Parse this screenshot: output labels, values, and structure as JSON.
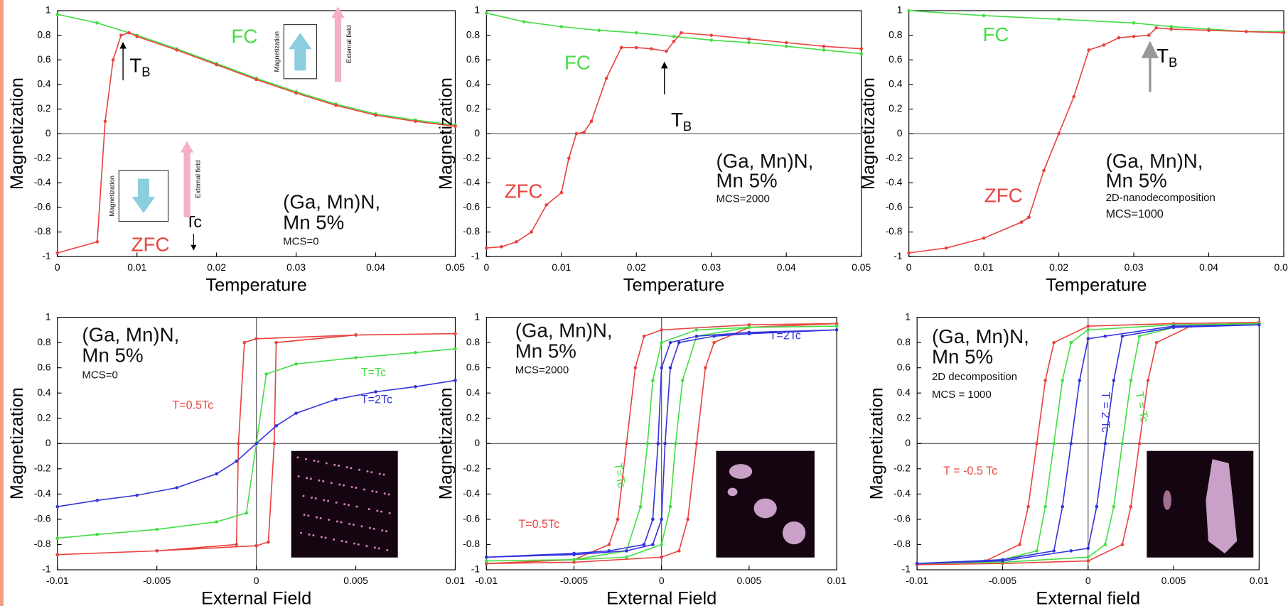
{
  "chart_data": [
    {
      "type": "line",
      "xlabel": "Temperature",
      "ylabel": "Magnetization",
      "xlim": [
        0,
        0.05
      ],
      "ylim": [
        -1,
        1
      ],
      "xticks": [
        0,
        0.01,
        0.02,
        0.03,
        0.04,
        0.05
      ],
      "yticks": [
        1,
        0.8,
        0.6,
        0.4,
        0.2,
        0,
        -0.2,
        -0.4,
        -0.6,
        -0.8,
        -1
      ],
      "series": [
        {
          "name": "FC",
          "color": "#44dd44",
          "x": [
            0,
            0.005,
            0.01,
            0.015,
            0.02,
            0.025,
            0.03,
            0.035,
            0.04,
            0.045,
            0.05
          ],
          "values": [
            0.97,
            0.9,
            0.8,
            0.69,
            0.57,
            0.45,
            0.34,
            0.24,
            0.16,
            0.11,
            0.07
          ]
        },
        {
          "name": "ZFC",
          "color": "#e8433f",
          "x": [
            0,
            0.005,
            0.006,
            0.007,
            0.008,
            0.009,
            0.01,
            0.015,
            0.02,
            0.025,
            0.03,
            0.035,
            0.04,
            0.045,
            0.05
          ],
          "values": [
            -0.97,
            -0.88,
            0.1,
            0.6,
            0.8,
            0.82,
            0.79,
            0.68,
            0.56,
            0.44,
            0.33,
            0.23,
            0.15,
            0.1,
            0.06
          ]
        }
      ],
      "notes": [
        "(Ga, Mn)N,",
        "Mn 5%",
        "MCS=0"
      ],
      "tb": {
        "main": "T",
        "sub": "B"
      },
      "tc": "Tc",
      "inset_labels": [
        "Magnetization",
        "External field",
        "Magnetization",
        "External field"
      ]
    },
    {
      "type": "line",
      "xlabel": "Temperature",
      "ylabel": "Magnetization",
      "xlim": [
        0,
        0.05
      ],
      "ylim": [
        -1,
        1
      ],
      "xticks": [
        0,
        0.01,
        0.02,
        0.03,
        0.04,
        0.05
      ],
      "yticks": [
        1,
        0.8,
        0.6,
        0.4,
        0.2,
        0,
        -0.2,
        -0.4,
        -0.6,
        -0.8,
        -1
      ],
      "series": [
        {
          "name": "FC",
          "color": "#44dd44",
          "x": [
            0,
            0.005,
            0.01,
            0.015,
            0.02,
            0.025,
            0.03,
            0.035,
            0.04,
            0.045,
            0.05
          ],
          "values": [
            0.98,
            0.91,
            0.87,
            0.84,
            0.82,
            0.79,
            0.76,
            0.74,
            0.71,
            0.68,
            0.65
          ]
        },
        {
          "name": "ZFC",
          "color": "#e8433f",
          "x": [
            0,
            0.002,
            0.004,
            0.006,
            0.008,
            0.01,
            0.011,
            0.012,
            0.013,
            0.014,
            0.016,
            0.018,
            0.02,
            0.022,
            0.024,
            0.025,
            0.026,
            0.03,
            0.035,
            0.04,
            0.045,
            0.05
          ],
          "values": [
            -0.93,
            -0.92,
            -0.88,
            -0.8,
            -0.58,
            -0.48,
            -0.2,
            0,
            0.01,
            0.1,
            0.45,
            0.7,
            0.7,
            0.69,
            0.67,
            0.75,
            0.82,
            0.8,
            0.77,
            0.74,
            0.71,
            0.69
          ]
        }
      ],
      "notes": [
        "(Ga, Mn)N,",
        "Mn 5%",
        "MCS=2000"
      ],
      "tb": {
        "main": "T",
        "sub": "B"
      }
    },
    {
      "type": "line",
      "xlabel": "Temperature",
      "ylabel": "Magnetization",
      "xlim": [
        0,
        0.05
      ],
      "ylim": [
        -1,
        1
      ],
      "xticks": [
        0,
        0.01,
        0.02,
        0.03,
        0.04,
        0.05
      ],
      "yticks": [
        1,
        0.8,
        0.6,
        0.4,
        0.2,
        0,
        -0.2,
        -0.4,
        -0.6,
        -0.8,
        -1
      ],
      "series": [
        {
          "name": "FC",
          "color": "#44dd44",
          "x": [
            0,
            0.01,
            0.02,
            0.03,
            0.035,
            0.04,
            0.045,
            0.05
          ],
          "values": [
            1,
            0.96,
            0.93,
            0.9,
            0.87,
            0.85,
            0.83,
            0.83
          ]
        },
        {
          "name": "ZFC",
          "color": "#e8433f",
          "x": [
            0,
            0.005,
            0.01,
            0.015,
            0.016,
            0.018,
            0.02,
            0.022,
            0.024,
            0.026,
            0.028,
            0.03,
            0.032,
            0.033,
            0.035,
            0.04,
            0.045,
            0.05
          ],
          "values": [
            -0.97,
            -0.93,
            -0.85,
            -0.72,
            -0.68,
            -0.3,
            0,
            0.3,
            0.68,
            0.72,
            0.78,
            0.79,
            0.8,
            0.86,
            0.85,
            0.84,
            0.83,
            0.82
          ]
        }
      ],
      "notes": [
        "(Ga, Mn)N,",
        "Mn 5%",
        "2D-nanodecomposition",
        "MCS=1000"
      ],
      "tb": {
        "main": "T",
        "sub": "B"
      }
    },
    {
      "type": "line",
      "xlabel": "External Field",
      "ylabel": "Magnetization",
      "xlim": [
        -0.01,
        0.01
      ],
      "ylim": [
        -1,
        1
      ],
      "xticks": [
        -0.01,
        -0.005,
        0,
        0.005,
        0.01
      ],
      "yticks": [
        1,
        0.8,
        0.6,
        0.4,
        0.2,
        0,
        -0.2,
        -0.4,
        -0.6,
        -0.8,
        -1
      ],
      "series": [
        {
          "name": "T=0.5Tc",
          "color": "#e8433f",
          "x": [
            -0.01,
            -0.005,
            0,
            0.0006,
            0.0009,
            0.001,
            0.005,
            0.01,
            0.005,
            0,
            -0.0006,
            -0.0009,
            -0.001,
            -0.005,
            -0.01
          ],
          "values": [
            -0.88,
            -0.85,
            -0.81,
            -0.78,
            0,
            0.8,
            0.86,
            0.87,
            0.86,
            0.83,
            0.8,
            0,
            -0.8,
            -0.85,
            -0.88
          ]
        },
        {
          "name": "T=Tc",
          "color": "#44dd44",
          "x": [
            -0.01,
            -0.008,
            -0.005,
            -0.002,
            -0.0005,
            0,
            0.0005,
            0.002,
            0.005,
            0.008,
            0.01
          ],
          "values": [
            -0.75,
            -0.72,
            -0.68,
            -0.62,
            -0.55,
            0,
            0.55,
            0.63,
            0.68,
            0.72,
            0.75
          ]
        },
        {
          "name": "T=2Tc",
          "color": "#3333dd",
          "x": [
            -0.01,
            -0.008,
            -0.006,
            -0.004,
            -0.002,
            -0.001,
            0,
            0.001,
            0.002,
            0.004,
            0.006,
            0.008,
            0.01
          ],
          "values": [
            -0.5,
            -0.45,
            -0.41,
            -0.35,
            -0.24,
            -0.14,
            0,
            0.14,
            0.24,
            0.35,
            0.41,
            0.45,
            0.5
          ]
        }
      ],
      "notes": [
        "(Ga, Mn)N,",
        "Mn 5%",
        "MCS=0"
      ]
    },
    {
      "type": "line",
      "xlabel": "External Field",
      "ylabel": "Magnetization",
      "xlim": [
        -0.01,
        0.01
      ],
      "ylim": [
        -1,
        1
      ],
      "xticks": [
        -0.01,
        -0.005,
        0,
        0.005,
        0.01
      ],
      "yticks": [
        1,
        0.8,
        0.6,
        0.4,
        0.2,
        0,
        -0.2,
        -0.4,
        -0.6,
        -0.8,
        -1
      ],
      "series": [
        {
          "name": "T=0.5Tc",
          "color": "#e8433f",
          "x": [
            -0.01,
            -0.005,
            0,
            0.001,
            0.0015,
            0.002,
            0.0025,
            0.003,
            0.005,
            0.01,
            0.005,
            0,
            -0.001,
            -0.0015,
            -0.002,
            -0.0025,
            -0.003,
            -0.005,
            -0.01
          ],
          "values": [
            -0.95,
            -0.94,
            -0.9,
            -0.85,
            -0.6,
            0,
            0.6,
            0.8,
            0.92,
            0.95,
            0.94,
            0.9,
            0.85,
            0.6,
            0,
            -0.6,
            -0.8,
            -0.92,
            -0.95
          ]
        },
        {
          "name": "T=Tc",
          "color": "#44dd44",
          "x": [
            -0.01,
            -0.005,
            -0.002,
            0,
            0.0005,
            0.0008,
            0.0012,
            0.002,
            0.005,
            0.01,
            0.005,
            0.002,
            0,
            -0.0005,
            -0.0008,
            -0.0012,
            -0.002,
            -0.005,
            -0.01
          ],
          "values": [
            -0.93,
            -0.92,
            -0.9,
            -0.8,
            -0.5,
            0,
            0.5,
            0.85,
            0.92,
            0.93,
            0.92,
            0.9,
            0.8,
            0.5,
            0,
            -0.5,
            -0.85,
            -0.92,
            -0.93
          ]
        },
        {
          "name": "T=2Tc",
          "color": "#3333dd",
          "x": [
            -0.01,
            -0.005,
            -0.002,
            -0.0005,
            0,
            0.0002,
            0.0005,
            0.001,
            0.003,
            0.005,
            0.01,
            0.005,
            0.002,
            0.0005,
            0,
            -0.0002,
            -0.0005,
            -0.001,
            -0.003,
            -0.005,
            -0.01
          ],
          "values": [
            -0.9,
            -0.88,
            -0.85,
            -0.8,
            -0.6,
            0,
            0.6,
            0.8,
            0.85,
            0.87,
            0.9,
            0.88,
            0.85,
            0.8,
            0.6,
            0,
            -0.6,
            -0.8,
            -0.85,
            -0.87,
            -0.9
          ]
        }
      ],
      "notes": [
        "(Ga, Mn)N,",
        "Mn 5%",
        "MCS=2000"
      ]
    },
    {
      "type": "line",
      "xlabel": "External field",
      "ylabel": "Magnetization",
      "xlim": [
        -0.01,
        0.01
      ],
      "ylim": [
        -1,
        1
      ],
      "xticks": [
        -0.01,
        -0.005,
        0,
        0.005,
        0.01
      ],
      "yticks": [
        1,
        0.8,
        0.6,
        0.4,
        0.2,
        0,
        -0.2,
        -0.4,
        -0.6,
        -0.8,
        -1
      ],
      "series": [
        {
          "name": "T = -0.5 Tc",
          "color": "#e8433f",
          "x": [
            -0.01,
            -0.005,
            0,
            0.002,
            0.0025,
            0.003,
            0.0035,
            0.004,
            0.006,
            0.01,
            0.005,
            0,
            -0.002,
            -0.0025,
            -0.003,
            -0.0035,
            -0.004,
            -0.006,
            -0.01
          ],
          "values": [
            -0.96,
            -0.95,
            -0.93,
            -0.8,
            -0.5,
            0,
            0.5,
            0.8,
            0.93,
            0.96,
            0.95,
            0.93,
            0.8,
            0.5,
            0,
            -0.5,
            -0.8,
            -0.93,
            -0.96
          ]
        },
        {
          "name": "T = Tc",
          "color": "#44dd44",
          "x": [
            -0.01,
            -0.005,
            0,
            0.001,
            0.0015,
            0.002,
            0.0025,
            0.003,
            0.005,
            0.01,
            0.005,
            0,
            -0.001,
            -0.0015,
            -0.002,
            -0.0025,
            -0.003,
            -0.005,
            -0.01
          ],
          "values": [
            -0.95,
            -0.94,
            -0.9,
            -0.8,
            -0.5,
            0,
            0.5,
            0.85,
            0.92,
            0.95,
            0.94,
            0.9,
            0.8,
            0.5,
            0,
            -0.5,
            -0.85,
            -0.92,
            -0.95
          ]
        },
        {
          "name": "T = 2 Tc",
          "color": "#3333dd",
          "x": [
            -0.01,
            -0.005,
            -0.001,
            0,
            0.0005,
            0.001,
            0.0015,
            0.002,
            0.005,
            0.01,
            0.005,
            0.001,
            0,
            -0.0005,
            -0.001,
            -0.0015,
            -0.002,
            -0.005,
            -0.01
          ],
          "values": [
            -0.95,
            -0.93,
            -0.85,
            -0.83,
            -0.5,
            0,
            0.5,
            0.85,
            0.92,
            0.94,
            0.93,
            0.85,
            0.83,
            0.5,
            0,
            -0.5,
            -0.85,
            -0.92,
            -0.95
          ]
        }
      ],
      "notes": [
        "(Ga, Mn)N,",
        "Mn 5%",
        "2D decomposition",
        "MCS = 1000"
      ]
    }
  ]
}
